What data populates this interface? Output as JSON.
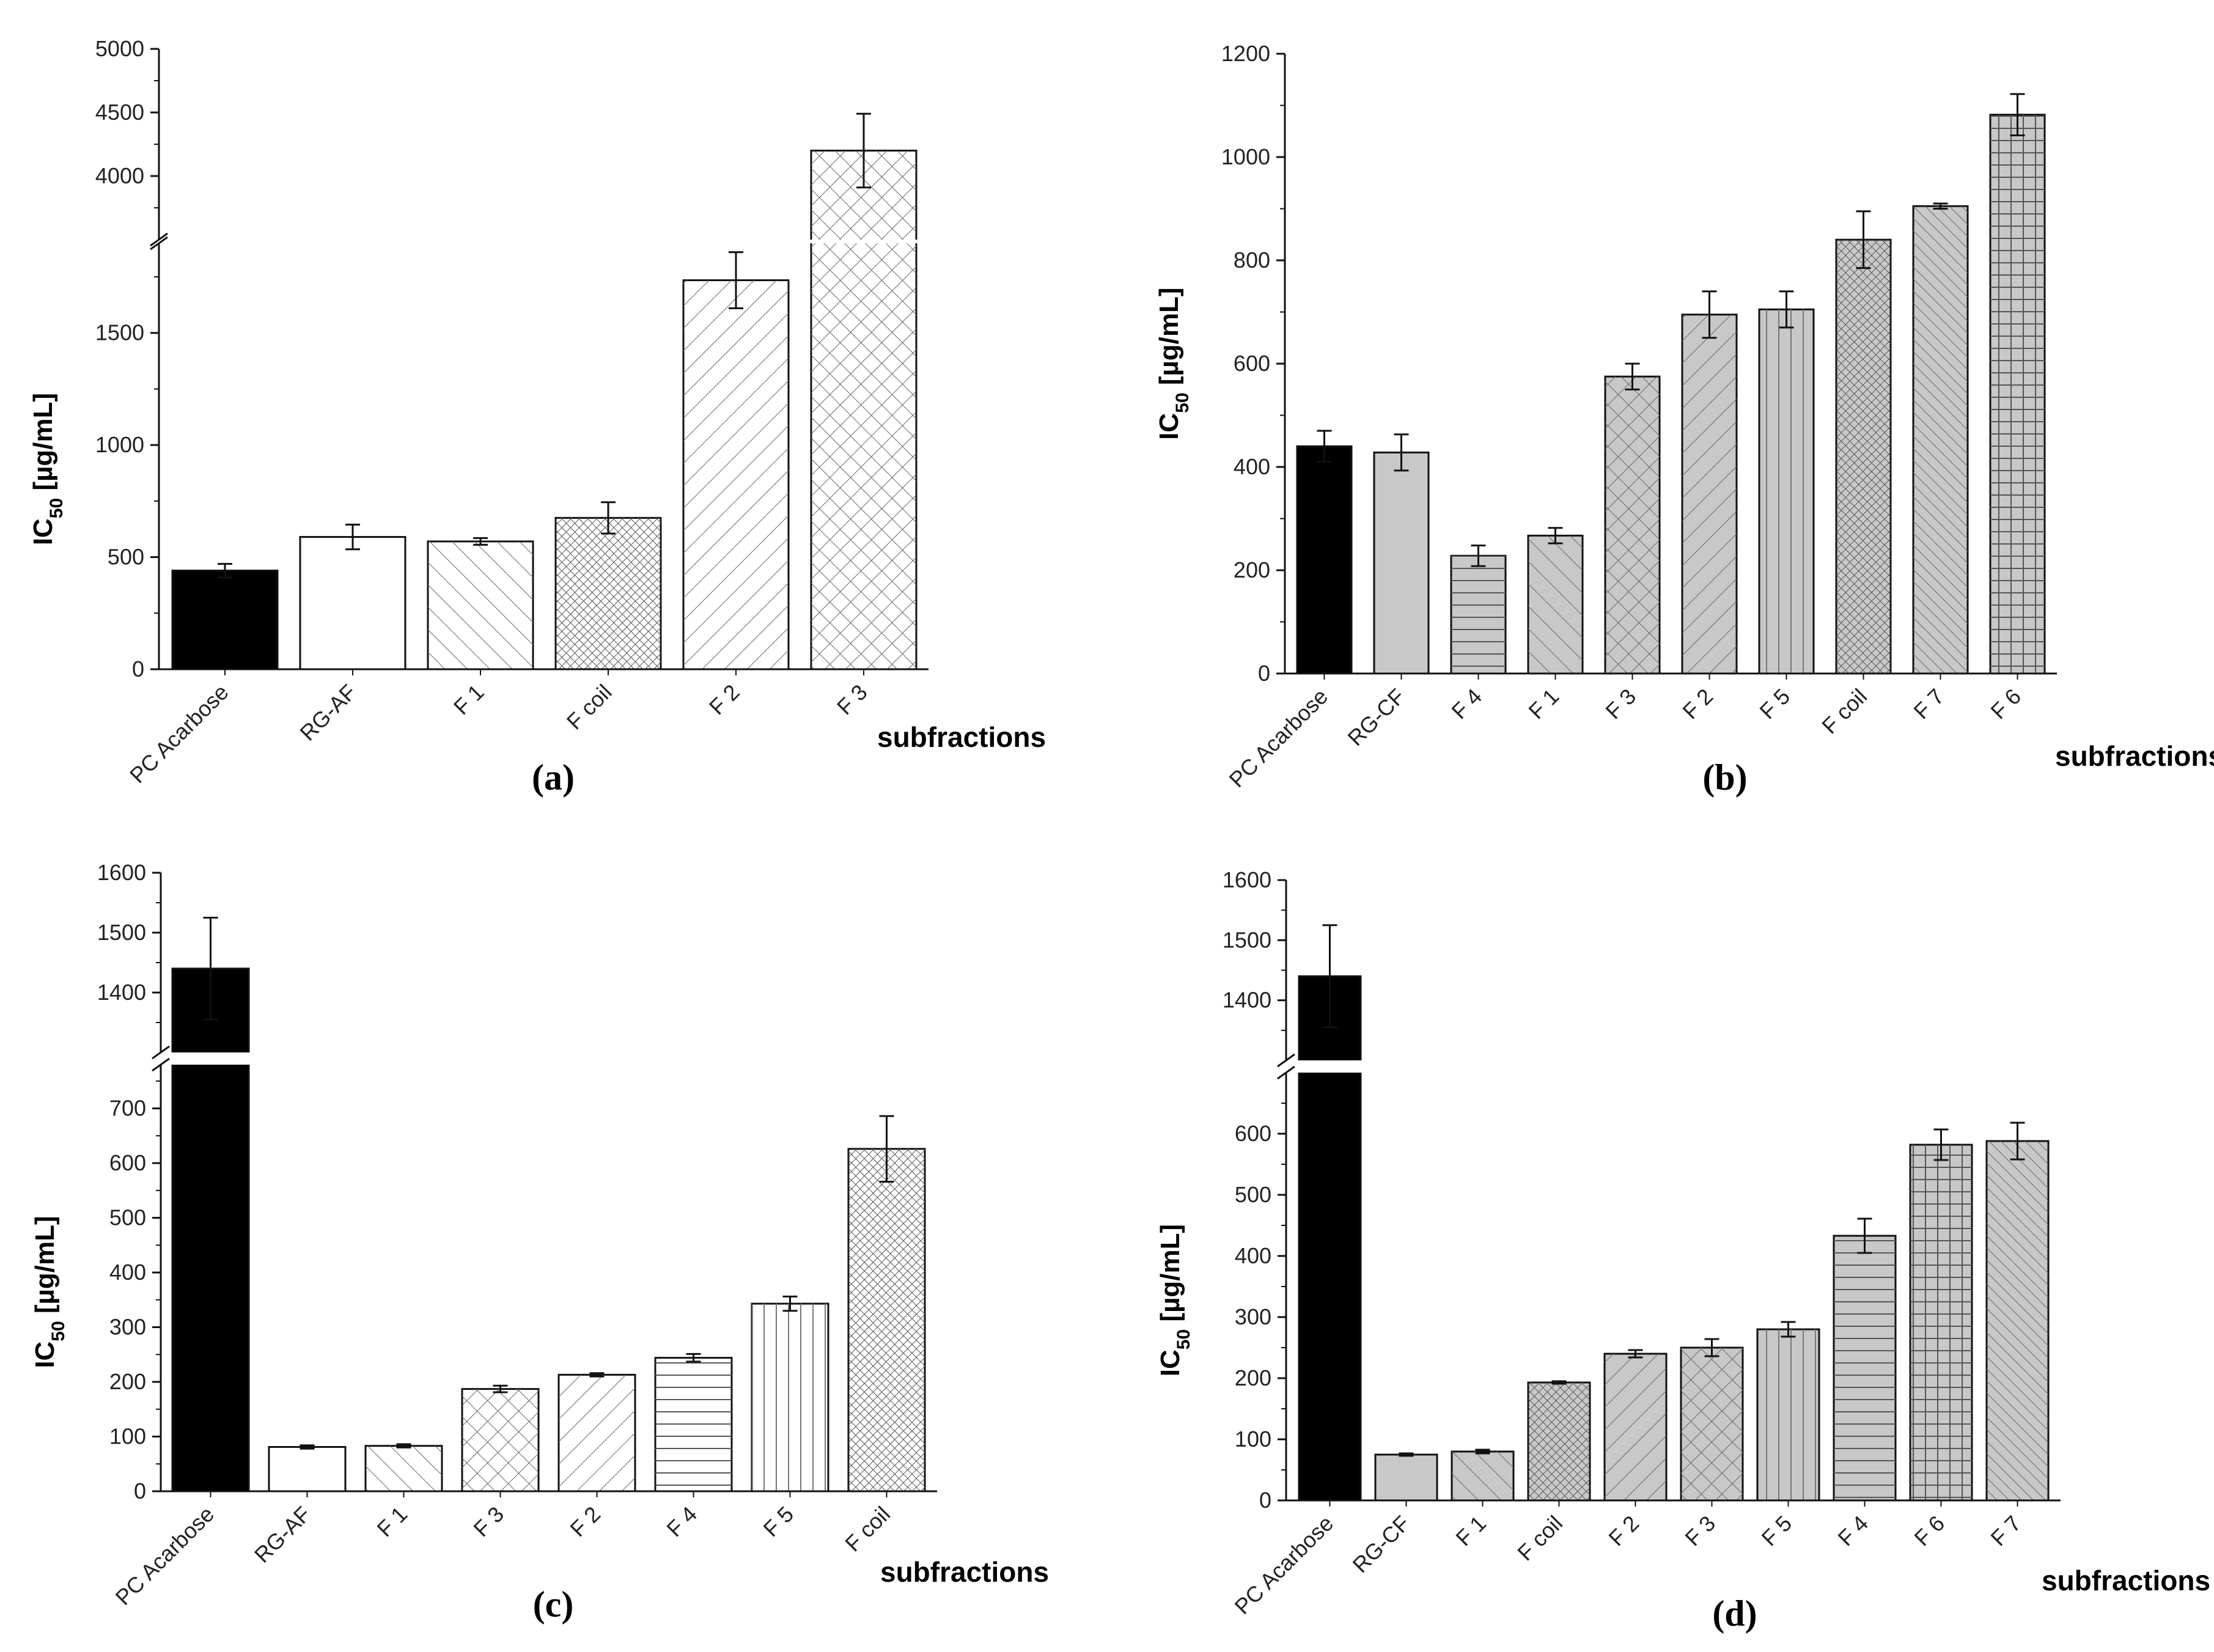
{
  "chart_data": [
    {
      "panel_label": "(a)",
      "type": "bar",
      "title": "",
      "xlabel": "subfractions",
      "ylabel_main": "IC",
      "ylabel_sub": "50",
      "ylabel_unit": " [µg/mL]",
      "categories": [
        "PC Acarbose",
        "RG-AF",
        "F 1",
        "F coil",
        "F 2",
        "F 3"
      ],
      "values": [
        440,
        590,
        570,
        675,
        1735,
        4200
      ],
      "errors": [
        30,
        55,
        15,
        70,
        125,
        290
      ],
      "fills": [
        "#000000",
        "#ffffff",
        "#ffffff",
        "#ffffff",
        "#ffffff",
        "#ffffff"
      ],
      "patterns": [
        "solid",
        "none",
        "diag-wide",
        "cross-fine",
        "back-diag",
        "cross-wide"
      ],
      "axis_break": {
        "lower": [
          0,
          1900
        ],
        "upper": [
          3500,
          5000
        ]
      },
      "yticks_lower": [
        0,
        500,
        1000,
        1500
      ],
      "yticks_upper": [
        4000,
        4500,
        5000
      ]
    },
    {
      "panel_label": "(b)",
      "type": "bar",
      "title": "",
      "xlabel": "subfractions",
      "ylabel_main": "IC",
      "ylabel_sub": "50",
      "ylabel_unit": " [µg/mL]",
      "categories": [
        "PC Acarbose",
        "RG-CF",
        "F 4",
        "F 1",
        "F 3",
        "F 2",
        "F 5",
        "F coil",
        "F 7",
        "F 6"
      ],
      "values": [
        440,
        428,
        228,
        267,
        575,
        695,
        705,
        840,
        905,
        1082
      ],
      "errors": [
        30,
        35,
        20,
        15,
        25,
        45,
        35,
        55,
        5,
        40
      ],
      "fills": [
        "#000000",
        "#c8c8c8",
        "#c8c8c8",
        "#c8c8c8",
        "#c8c8c8",
        "#c8c8c8",
        "#c8c8c8",
        "#c8c8c8",
        "#c8c8c8",
        "#c8c8c8"
      ],
      "patterns": [
        "solid",
        "none",
        "horizontal",
        "diag-wide",
        "cross-wide",
        "back-diag",
        "vertical",
        "cross-fine",
        "diag-fine",
        "grid"
      ],
      "ylim": [
        0,
        1200
      ],
      "yticks": [
        0,
        200,
        400,
        600,
        800,
        1000,
        1200
      ]
    },
    {
      "panel_label": "(c)",
      "type": "bar",
      "title": "",
      "xlabel": "subfractions",
      "ylabel_main": "IC",
      "ylabel_sub": "50",
      "ylabel_unit": " [µg/mL]",
      "categories": [
        "PC Acarbose",
        "RG-AF",
        "F 1",
        "F 3",
        "F 2",
        "F 4",
        "F 5",
        "F coil"
      ],
      "values": [
        1440,
        81,
        83,
        187,
        213,
        244,
        343,
        626
      ],
      "errors": [
        85,
        3,
        3,
        6,
        3,
        7,
        13,
        60
      ],
      "fills": [
        "#000000",
        "#ffffff",
        "#ffffff",
        "#ffffff",
        "#ffffff",
        "#ffffff",
        "#ffffff",
        "#ffffff"
      ],
      "patterns": [
        "solid",
        "none",
        "diag-wide",
        "cross-wide",
        "back-diag",
        "horizontal",
        "vertical",
        "cross-fine"
      ],
      "axis_break": {
        "lower": [
          0,
          780
        ],
        "upper": [
          1300,
          1600
        ]
      },
      "yticks_lower": [
        0,
        100,
        200,
        300,
        400,
        500,
        600,
        700
      ],
      "yticks_upper": [
        1400,
        1500,
        1600
      ]
    },
    {
      "panel_label": "(d)",
      "type": "bar",
      "title": "",
      "xlabel": "subfractions",
      "ylabel_main": "IC",
      "ylabel_sub": "50",
      "ylabel_unit": " [µg/mL]",
      "categories": [
        "PC Acarbose",
        "RG-CF",
        "F 1",
        "F coil",
        "F 2",
        "F 3",
        "F 5",
        "F 4",
        "F 6",
        "F 7"
      ],
      "values": [
        1440,
        75,
        80,
        193,
        240,
        250,
        280,
        433,
        582,
        588
      ],
      "errors": [
        85,
        2,
        3,
        2,
        6,
        14,
        12,
        28,
        25,
        30
      ],
      "fills": [
        "#000000",
        "#c8c8c8",
        "#c8c8c8",
        "#c8c8c8",
        "#c8c8c8",
        "#c8c8c8",
        "#c8c8c8",
        "#c8c8c8",
        "#c8c8c8",
        "#c8c8c8"
      ],
      "patterns": [
        "solid",
        "none",
        "diag-wide",
        "cross-fine",
        "back-diag",
        "cross-wide",
        "vertical",
        "horizontal",
        "grid",
        "diag-fine"
      ],
      "axis_break": {
        "lower": [
          0,
          700
        ],
        "upper": [
          1300,
          1600
        ]
      },
      "yticks_lower": [
        0,
        100,
        200,
        300,
        400,
        500,
        600
      ],
      "yticks_upper": [
        1400,
        1500,
        1600
      ]
    }
  ]
}
